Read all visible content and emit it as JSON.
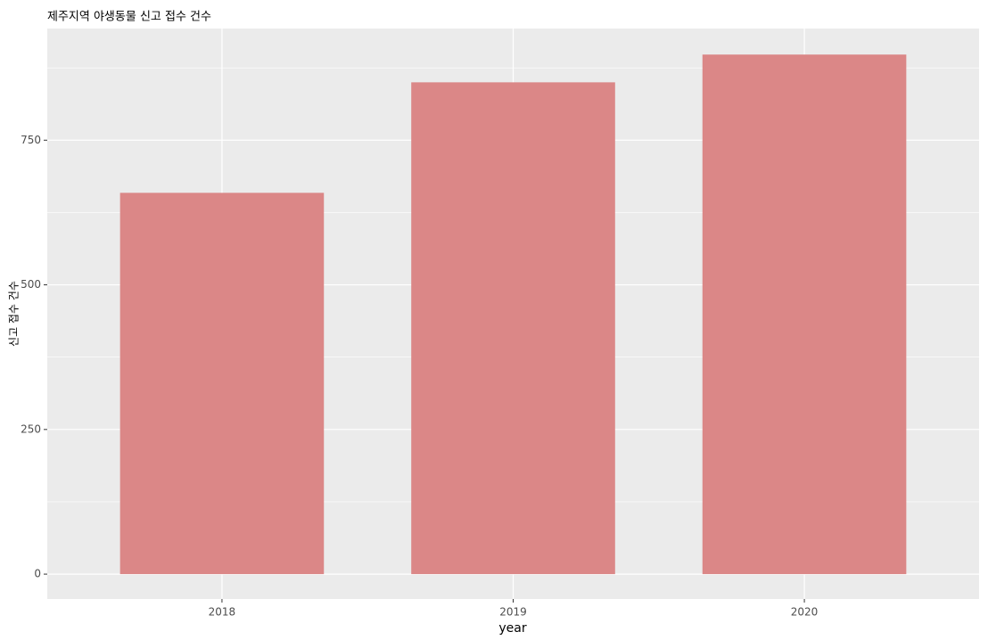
{
  "chart_data": {
    "type": "bar",
    "title": "제주지역 야생동물 신고 접수 건수",
    "x_label": "year",
    "y_label": "신고 접수 건수",
    "categories": [
      "2018",
      "2019",
      "2020"
    ],
    "values": [
      659,
      850,
      898
    ],
    "color": "#db8787",
    "ylim": [
      -43,
      943
    ],
    "yticks": [
      0,
      250,
      500,
      750
    ],
    "y_minor_ticks": [
      125,
      375,
      625,
      875
    ],
    "grid": true
  }
}
